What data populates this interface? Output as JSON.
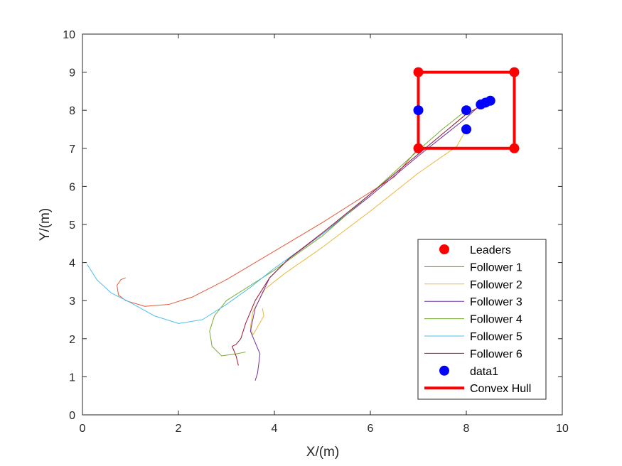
{
  "chart_data": {
    "type": "line",
    "title": "",
    "xlabel": "X/(m)",
    "ylabel": "Y/(m)",
    "xlim": [
      0,
      10
    ],
    "ylim": [
      0,
      10
    ],
    "xticks": [
      "0",
      "2",
      "4",
      "6",
      "8",
      "10"
    ],
    "yticks": [
      "0",
      "1",
      "2",
      "3",
      "4",
      "5",
      "6",
      "7",
      "8",
      "9",
      "10"
    ],
    "grid": false,
    "legend_position": "bottom-right",
    "colors": {
      "leaders": "#ff0000",
      "follower1": "#a2742c",
      "follower2": "#e8b83a",
      "follower3": "#7030a0",
      "follower4": "#77ac30",
      "follower5": "#4dbeee",
      "follower6": "#a2142f",
      "data1": "#0000ff",
      "hull": "#ff0000",
      "follower1_red_track": "#e05a3a"
    },
    "series": [
      {
        "name": "Leaders",
        "kind": "marker",
        "color_key": "leaders",
        "points": [
          [
            7,
            7
          ],
          [
            9,
            7
          ],
          [
            9,
            9
          ],
          [
            7,
            9
          ]
        ]
      },
      {
        "name": "Follower 1",
        "kind": "line",
        "color_key": "follower1_red_track",
        "points": [
          [
            0.9,
            3.6
          ],
          [
            0.8,
            3.55
          ],
          [
            0.72,
            3.4
          ],
          [
            0.75,
            3.15
          ],
          [
            0.9,
            3.0
          ],
          [
            1.3,
            2.85
          ],
          [
            1.8,
            2.9
          ],
          [
            2.3,
            3.1
          ],
          [
            3.0,
            3.55
          ],
          [
            4.0,
            4.3
          ],
          [
            5.0,
            5.05
          ],
          [
            6.0,
            5.85
          ],
          [
            6.5,
            6.25
          ],
          [
            7.0,
            7.0
          ],
          [
            7.0,
            8.0
          ]
        ]
      },
      {
        "name": "Follower 2",
        "kind": "line",
        "color_key": "follower2",
        "points": [
          [
            3.75,
            2.8
          ],
          [
            3.78,
            2.6
          ],
          [
            3.6,
            2.2
          ],
          [
            3.55,
            2.1
          ],
          [
            3.5,
            2.3
          ],
          [
            3.55,
            2.7
          ],
          [
            3.8,
            3.3
          ],
          [
            4.2,
            3.7
          ],
          [
            5.0,
            4.4
          ],
          [
            6.0,
            5.35
          ],
          [
            7.0,
            6.35
          ],
          [
            7.8,
            7.05
          ],
          [
            8.0,
            7.5
          ]
        ]
      },
      {
        "name": "Follower 3",
        "kind": "line",
        "color_key": "follower3",
        "points": [
          [
            3.6,
            0.9
          ],
          [
            3.65,
            1.1
          ],
          [
            3.7,
            1.6
          ],
          [
            3.6,
            1.9
          ],
          [
            3.5,
            2.2
          ],
          [
            3.6,
            2.8
          ],
          [
            3.9,
            3.6
          ],
          [
            4.3,
            4.1
          ],
          [
            5.0,
            4.75
          ],
          [
            6.0,
            5.75
          ],
          [
            7.0,
            6.8
          ],
          [
            8.0,
            7.8
          ],
          [
            8.3,
            8.15
          ]
        ]
      },
      {
        "name": "Follower 4",
        "kind": "line",
        "color_key": "follower4",
        "points": [
          [
            3.4,
            1.65
          ],
          [
            3.2,
            1.6
          ],
          [
            2.9,
            1.55
          ],
          [
            2.7,
            1.8
          ],
          [
            2.65,
            2.2
          ],
          [
            2.75,
            2.6
          ],
          [
            3.0,
            3.0
          ],
          [
            3.5,
            3.4
          ],
          [
            4.0,
            3.8
          ],
          [
            5.0,
            4.7
          ],
          [
            6.0,
            5.8
          ],
          [
            7.0,
            6.95
          ],
          [
            7.5,
            7.5
          ],
          [
            8.0,
            8.0
          ]
        ]
      },
      {
        "name": "Follower 5",
        "kind": "line",
        "color_key": "follower5",
        "points": [
          [
            0.1,
            3.95
          ],
          [
            0.3,
            3.55
          ],
          [
            0.6,
            3.2
          ],
          [
            1.0,
            2.95
          ],
          [
            1.5,
            2.6
          ],
          [
            2.0,
            2.4
          ],
          [
            2.5,
            2.5
          ],
          [
            3.0,
            2.9
          ],
          [
            3.5,
            3.35
          ],
          [
            4.0,
            3.85
          ],
          [
            5.0,
            4.75
          ],
          [
            6.0,
            5.8
          ],
          [
            7.0,
            6.85
          ],
          [
            8.0,
            7.9
          ],
          [
            8.45,
            8.22
          ]
        ]
      },
      {
        "name": "Follower 6",
        "kind": "line",
        "color_key": "follower6",
        "points": [
          [
            3.25,
            1.3
          ],
          [
            3.2,
            1.55
          ],
          [
            3.12,
            1.8
          ],
          [
            3.2,
            1.85
          ],
          [
            3.3,
            2.0
          ],
          [
            3.4,
            2.4
          ],
          [
            3.6,
            3.0
          ],
          [
            3.9,
            3.6
          ],
          [
            4.3,
            4.1
          ],
          [
            5.0,
            4.78
          ],
          [
            6.0,
            5.8
          ],
          [
            7.0,
            6.85
          ],
          [
            8.0,
            7.9
          ],
          [
            8.5,
            8.25
          ]
        ]
      },
      {
        "name": "data1",
        "kind": "marker",
        "color_key": "data1",
        "points": [
          [
            7.0,
            8.0
          ],
          [
            8.0,
            8.0
          ],
          [
            8.0,
            7.5
          ],
          [
            8.3,
            8.15
          ],
          [
            8.4,
            8.2
          ],
          [
            8.5,
            8.25
          ]
        ]
      },
      {
        "name": "Convex Hull",
        "kind": "polygon",
        "color_key": "hull",
        "points": [
          [
            7,
            7
          ],
          [
            9,
            7
          ],
          [
            9,
            9
          ],
          [
            7,
            9
          ],
          [
            7,
            7
          ]
        ]
      }
    ],
    "legend": [
      {
        "label": "Leaders",
        "type": "marker",
        "color_key": "leaders"
      },
      {
        "label": "Follower 1",
        "type": "line",
        "color_key": "follower1"
      },
      {
        "label": "Follower 2",
        "type": "line",
        "color_key": "follower2"
      },
      {
        "label": "Follower 3",
        "type": "line",
        "color_key": "follower3"
      },
      {
        "label": "Follower 4",
        "type": "line",
        "color_key": "follower4"
      },
      {
        "label": "Follower 5",
        "type": "line",
        "color_key": "follower5"
      },
      {
        "label": "Follower 6",
        "type": "line",
        "color_key": "follower6"
      },
      {
        "label": "data1",
        "type": "marker",
        "color_key": "data1"
      },
      {
        "label": "Convex Hull",
        "type": "thickline",
        "color_key": "hull"
      }
    ]
  }
}
